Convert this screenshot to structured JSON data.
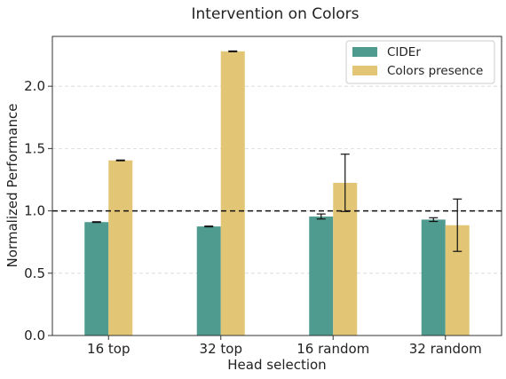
{
  "chart_data": {
    "type": "bar",
    "title": "Intervention on Colors",
    "xlabel": "Head selection",
    "ylabel": "Normalized Performance",
    "categories": [
      "16 top",
      "32 top",
      "16 random",
      "32 random"
    ],
    "series": [
      {
        "name": "CIDEr",
        "color": "#4f9b8f",
        "values": [
          0.91,
          0.875,
          0.955,
          0.93
        ],
        "errors": [
          0.003,
          0.003,
          0.02,
          0.015
        ]
      },
      {
        "name": "Colors presence",
        "color": "#e2c675",
        "values": [
          1.405,
          2.28,
          1.225,
          0.885
        ],
        "errors": [
          0.003,
          0.003,
          0.23,
          0.21
        ]
      }
    ],
    "ylim": [
      0,
      2.4
    ],
    "yticks": [
      0.0,
      0.5,
      1.0,
      1.5,
      2.0
    ],
    "reference_line": 1.0,
    "grid": "horizontal dashed",
    "legend_position": "top-right"
  }
}
